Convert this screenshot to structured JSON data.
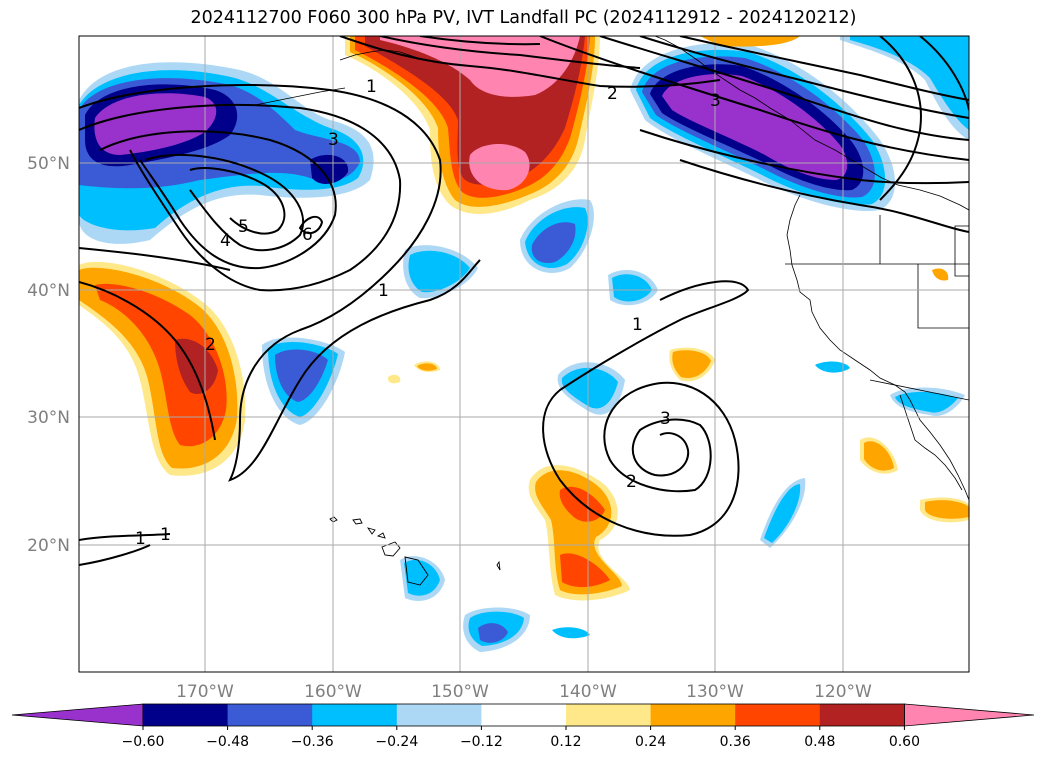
{
  "title": "2024112700 F060 300 hPa PV, IVT Landfall PC (2024112912 - 2024120212)",
  "latitude_labels": [
    "50°N",
    "40°N",
    "30°N",
    "20°N"
  ],
  "longitude_labels": [
    "170°W",
    "160°W",
    "150°W",
    "140°W",
    "130°W",
    "120°W"
  ],
  "colorbar": {
    "tick_labels": [
      "−0.60",
      "−0.48",
      "−0.36",
      "−0.24",
      "−0.12",
      "0.12",
      "0.24",
      "0.36",
      "0.48",
      "0.60"
    ],
    "colors": [
      "#9932cc",
      "#00008b",
      "#3b5bd6",
      "#00bfff",
      "#add8f5",
      "#ffffff",
      "#ffe88a",
      "#ffa500",
      "#ff4500",
      "#b22222",
      "#ff85b0"
    ]
  },
  "contour_labels": {
    "west_low": [
      "5",
      "4",
      "6",
      "3",
      "1"
    ],
    "north": [
      "1",
      "2",
      "3"
    ],
    "east_low": [
      "1",
      "2",
      "3"
    ],
    "southwest": [
      "2",
      "1",
      "1"
    ]
  },
  "colors": {
    "purple": "#9932cc",
    "navy": "#00008b",
    "royal_blue": "#3b5bd6",
    "deep_sky": "#00bfff",
    "light_blue": "#add8f5",
    "light_yellow": "#ffe88a",
    "orange": "#ffa500",
    "orange_red": "#ff4500",
    "firebrick": "#b22222",
    "pink": "#ff85b0"
  }
}
